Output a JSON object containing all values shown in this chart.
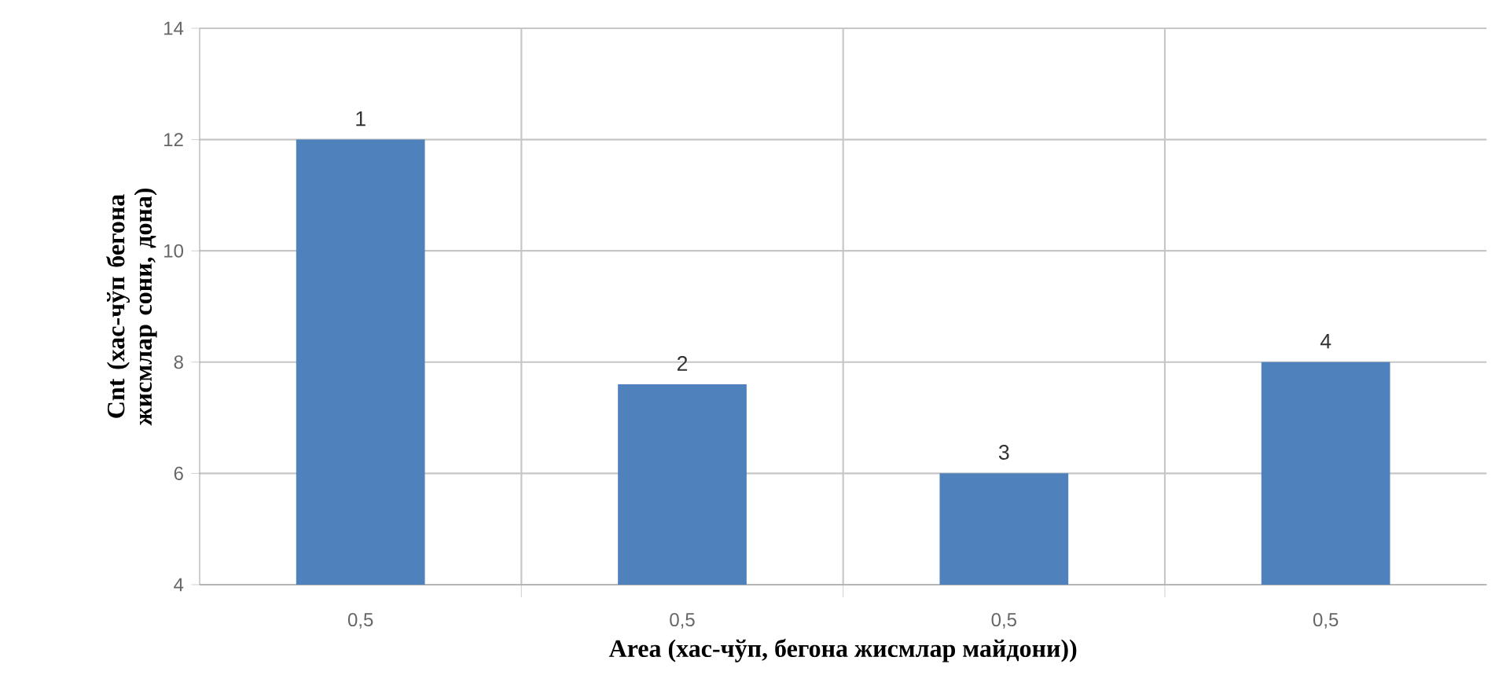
{
  "chart_data": {
    "type": "bar",
    "xlabel": "Area (хас-чўп, бегона жисмлар майдони))",
    "ylabel": "Cnt (хас-чўп бегона жисмлар сони, дона)",
    "categories": [
      "0,5",
      "0,5",
      "0,5",
      "0,5"
    ],
    "values": [
      12,
      7.6,
      6,
      8
    ],
    "annotations": [
      "1",
      "2",
      "3",
      "4"
    ],
    "color": "#4f81bd",
    "ylim": [
      4,
      14
    ],
    "yticks": [
      4,
      6,
      8,
      10,
      12,
      14
    ],
    "grid": true
  }
}
